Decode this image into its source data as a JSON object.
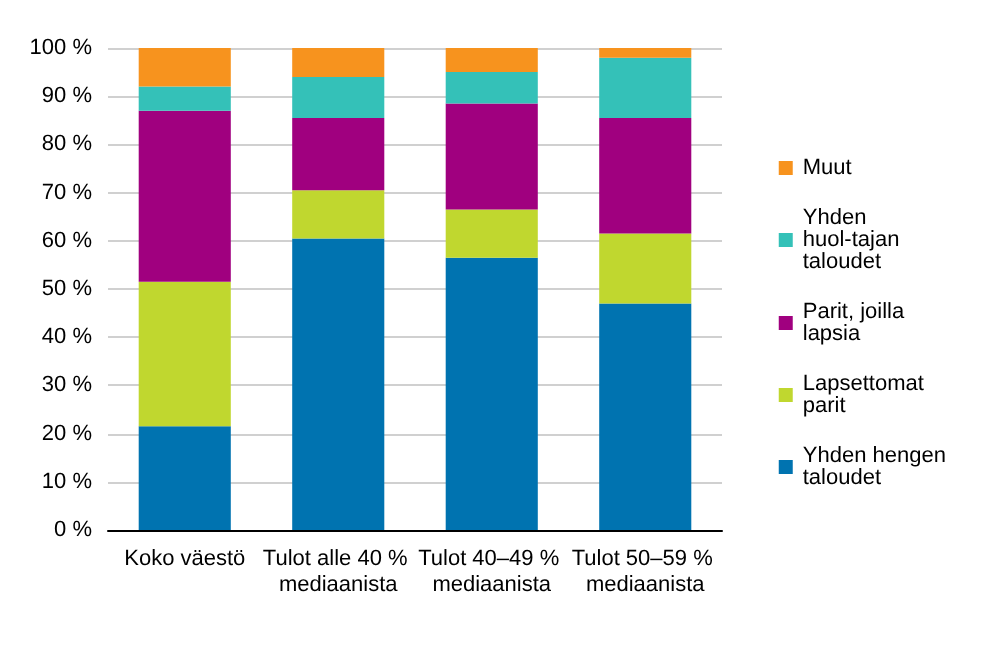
{
  "chart_data": {
    "type": "bar",
    "stacked": true,
    "categories": [
      "Koko väestö",
      "Tulot alle 40 % mediaanista",
      "Tulot 40–49 % mediaanista",
      "Tulot 50–59 % mediaanista"
    ],
    "series": [
      {
        "name": "Yhden hengen taloudet",
        "color": "#0073b0",
        "values": [
          21.5,
          60.5,
          56.5,
          47
        ]
      },
      {
        "name": "Lapsettomat parit",
        "color": "#c0d72f",
        "values": [
          30,
          10,
          10,
          14.5
        ]
      },
      {
        "name": "Parit, joilla lapsia",
        "color": "#a0007f",
        "values": [
          35.5,
          15,
          22,
          24
        ]
      },
      {
        "name": "Yhden huol-tajan taloudet",
        "color": "#34c1b8",
        "values": [
          5,
          8.5,
          6.5,
          12.5
        ]
      },
      {
        "name": "Muut",
        "color": "#f7931e",
        "values": [
          8,
          6,
          5,
          2
        ]
      }
    ],
    "ylim": [
      0,
      100
    ],
    "yticks": [
      {
        "value": 0,
        "label": "0 %"
      },
      {
        "value": 10,
        "label": "10 %"
      },
      {
        "value": 20,
        "label": "20 %"
      },
      {
        "value": 30,
        "label": "30 %"
      },
      {
        "value": 40,
        "label": "40 %"
      },
      {
        "value": 50,
        "label": "50 %"
      },
      {
        "value": 60,
        "label": "60 %"
      },
      {
        "value": 70,
        "label": "70 %"
      },
      {
        "value": 80,
        "label": "80 %"
      },
      {
        "value": 90,
        "label": "90 %"
      },
      {
        "value": 100,
        "label": "100 %"
      }
    ],
    "grid": "y",
    "legend": "right"
  }
}
